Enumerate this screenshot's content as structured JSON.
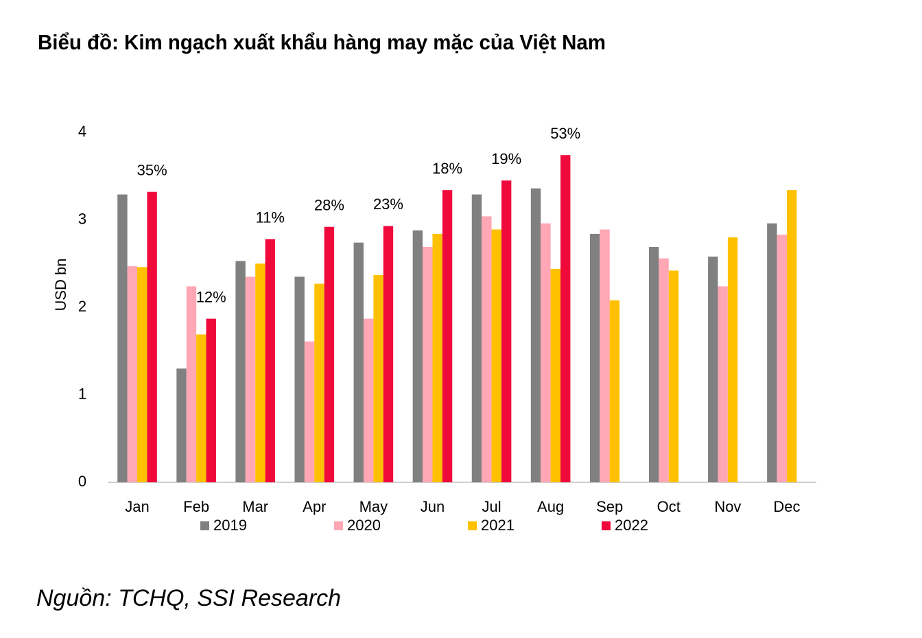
{
  "chart_data": {
    "type": "bar",
    "title": "Biểu đồ: Kim ngạch xuất khẩu hàng may mặc của Việt Nam",
    "y_label": "USD bn",
    "source": "Nguồn: TCHQ, SSI Research",
    "categories": [
      "Jan",
      "Feb",
      "Mar",
      "Apr",
      "May",
      "Jun",
      "Jul",
      "Aug",
      "Sep",
      "Oct",
      "Nov",
      "Dec"
    ],
    "series": [
      {
        "name": "2019",
        "color": "#808080",
        "values": [
          3.29,
          1.3,
          2.53,
          2.35,
          2.74,
          2.88,
          3.29,
          3.36,
          2.84,
          2.69,
          2.58,
          2.96
        ]
      },
      {
        "name": "2020",
        "color": "#ffa7b4",
        "values": [
          2.47,
          2.24,
          2.35,
          1.61,
          1.87,
          2.69,
          3.04,
          2.96,
          2.89,
          2.56,
          2.24,
          2.83
        ]
      },
      {
        "name": "2021",
        "color": "#ffc000",
        "values": [
          2.46,
          1.69,
          2.5,
          2.27,
          2.37,
          2.84,
          2.89,
          2.44,
          2.08,
          2.42,
          2.8,
          3.34
        ]
      },
      {
        "name": "2022",
        "color": "#f00a3c",
        "values": [
          3.32,
          1.87,
          2.78,
          2.92,
          2.93,
          3.34,
          3.45,
          3.74,
          null,
          null,
          null,
          null
        ],
        "annotations": [
          "35%",
          "12%",
          "11%",
          "28%",
          "23%",
          "18%",
          "19%",
          "53%",
          null,
          null,
          null,
          null
        ]
      }
    ],
    "ylim": [
      0,
      4
    ],
    "yticks": [
      0,
      1,
      2,
      3,
      4
    ],
    "grid": false
  }
}
